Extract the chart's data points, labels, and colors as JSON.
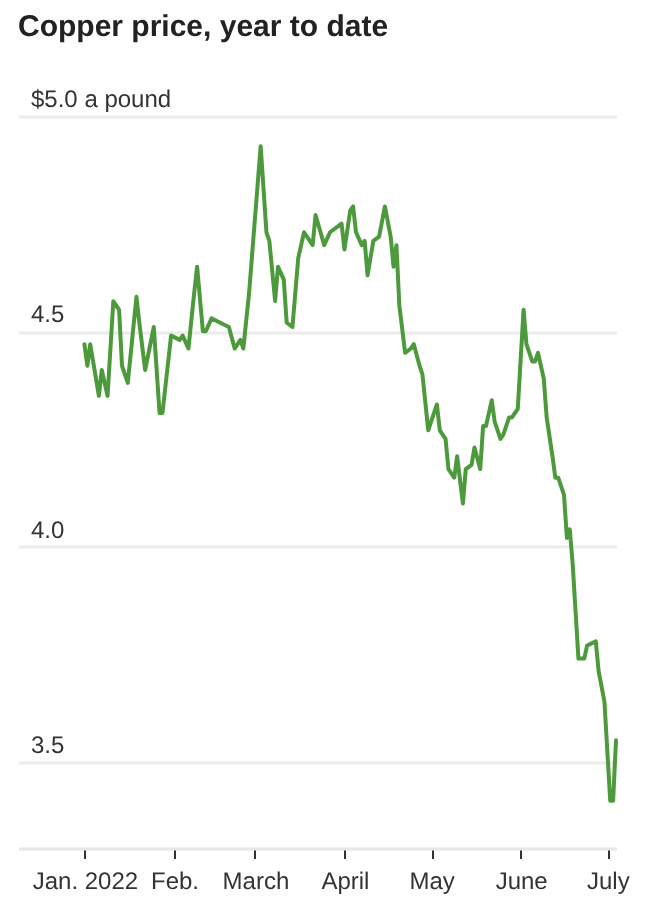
{
  "chart_data": {
    "type": "line",
    "title": "Copper price, year to date",
    "x": [
      "2022-01-01",
      "2022-01-02",
      "2022-01-03",
      "2022-01-06",
      "2022-01-07",
      "2022-01-09",
      "2022-01-11",
      "2022-01-13",
      "2022-01-14",
      "2022-01-16",
      "2022-01-19",
      "2022-01-20",
      "2022-01-22",
      "2022-01-25",
      "2022-01-27",
      "2022-01-28",
      "2022-01-31",
      "2022-02-03",
      "2022-02-04",
      "2022-02-06",
      "2022-02-08",
      "2022-02-09",
      "2022-02-11",
      "2022-02-12",
      "2022-02-14",
      "2022-02-17",
      "2022-02-20",
      "2022-02-22",
      "2022-02-24",
      "2022-02-25",
      "2022-02-27",
      "2022-03-01",
      "2022-03-03",
      "2022-03-05",
      "2022-03-06",
      "2022-03-08",
      "2022-03-09",
      "2022-03-11",
      "2022-03-12",
      "2022-03-14",
      "2022-03-16",
      "2022-03-18",
      "2022-03-20",
      "2022-03-21",
      "2022-03-22",
      "2022-03-25",
      "2022-03-27",
      "2022-03-31",
      "2022-04-01",
      "2022-04-03",
      "2022-04-04",
      "2022-04-05",
      "2022-04-07",
      "2022-04-08",
      "2022-04-09",
      "2022-04-11",
      "2022-04-13",
      "2022-04-15",
      "2022-04-17",
      "2022-04-18",
      "2022-04-19",
      "2022-04-20",
      "2022-04-22",
      "2022-04-24",
      "2022-04-25",
      "2022-04-27",
      "2022-04-28",
      "2022-04-30",
      "2022-05-01",
      "2022-05-03",
      "2022-05-04",
      "2022-05-06",
      "2022-05-07",
      "2022-05-09",
      "2022-05-10",
      "2022-05-12",
      "2022-05-13",
      "2022-05-15",
      "2022-05-16",
      "2022-05-18",
      "2022-05-19",
      "2022-05-20",
      "2022-05-22",
      "2022-05-23",
      "2022-05-25",
      "2022-05-26",
      "2022-05-28",
      "2022-05-29",
      "2022-05-31",
      "2022-06-02",
      "2022-06-03",
      "2022-06-05",
      "2022-06-06",
      "2022-06-07",
      "2022-06-09",
      "2022-06-10",
      "2022-06-12",
      "2022-06-13",
      "2022-06-14",
      "2022-06-16",
      "2022-06-17",
      "2022-06-18",
      "2022-06-19",
      "2022-06-21",
      "2022-06-23",
      "2022-06-24",
      "2022-06-27",
      "2022-06-28",
      "2022-06-30",
      "2022-07-02",
      "2022-07-03",
      "2022-07-04"
    ],
    "series": [
      {
        "color": "#4c9a3c",
        "values": [
          4.47,
          4.42,
          4.47,
          4.35,
          4.41,
          4.35,
          4.57,
          4.55,
          4.42,
          4.38,
          4.58,
          4.52,
          4.41,
          4.51,
          4.31,
          4.31,
          4.49,
          4.48,
          4.49,
          4.46,
          4.59,
          4.65,
          4.5,
          4.5,
          4.53,
          4.52,
          4.51,
          4.46,
          4.48,
          4.46,
          4.59,
          4.76,
          4.93,
          4.73,
          4.71,
          4.57,
          4.65,
          4.62,
          4.52,
          4.51,
          4.67,
          4.73,
          4.71,
          4.7,
          4.77,
          4.7,
          4.73,
          4.75,
          4.69,
          4.78,
          4.79,
          4.73,
          4.7,
          4.71,
          4.63,
          4.71,
          4.72,
          4.79,
          4.72,
          4.65,
          4.7,
          4.56,
          4.45,
          4.46,
          4.47,
          4.42,
          4.4,
          4.27,
          4.29,
          4.33,
          4.27,
          4.25,
          4.18,
          4.16,
          4.21,
          4.1,
          4.18,
          4.19,
          4.23,
          4.18,
          4.28,
          4.28,
          4.34,
          4.29,
          4.25,
          4.26,
          4.3,
          4.3,
          4.32,
          4.55,
          4.47,
          4.43,
          4.43,
          4.45,
          4.39,
          4.3,
          4.21,
          4.16,
          4.16,
          4.12,
          4.02,
          4.04,
          3.96,
          3.74,
          3.74,
          3.77,
          3.78,
          3.71,
          3.64,
          3.41,
          3.41,
          3.55
        ]
      }
    ],
    "xlim": [
      "2021-12-09",
      "2022-07-04"
    ],
    "ylim": [
      3.3,
      5.0
    ],
    "xticks": [
      {
        "value": "2022-01-01",
        "label": "Jan. 2022"
      },
      {
        "value": "2022-02-01",
        "label": "Feb."
      },
      {
        "value": "2022-03-01",
        "label": "March"
      },
      {
        "value": "2022-04-01",
        "label": "April"
      },
      {
        "value": "2022-05-01",
        "label": "May"
      },
      {
        "value": "2022-06-01",
        "label": "June"
      },
      {
        "value": "2022-07-01",
        "label": "July"
      }
    ],
    "yticks": [
      {
        "value": 3.5,
        "label": "3.5"
      },
      {
        "value": 4,
        "label": "4.0"
      },
      {
        "value": 4.5,
        "label": "4.5"
      },
      {
        "value": 5,
        "label": "$5.0 a pound"
      }
    ],
    "grid": "y"
  }
}
